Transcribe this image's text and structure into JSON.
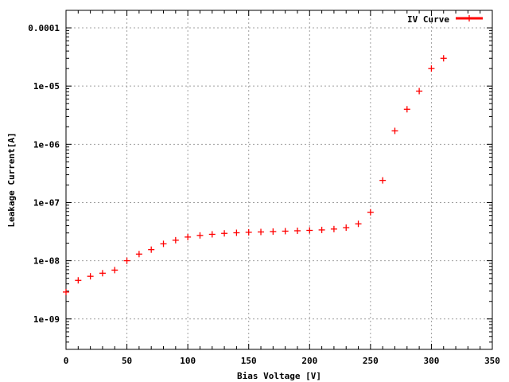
{
  "chart_data": {
    "type": "scatter",
    "xlabel": "Bias Voltage [V]",
    "ylabel": "Leakage Current[A]",
    "xlim": [
      0,
      350
    ],
    "ylim": [
      3e-10,
      0.0002
    ],
    "yscale": "log",
    "grid": true,
    "legend_position": "top-right",
    "x_ticks": [
      0,
      50,
      100,
      150,
      200,
      250,
      300,
      350
    ],
    "x_tick_labels": [
      "0",
      "50",
      "100",
      "150",
      "200",
      "250",
      "300",
      "350"
    ],
    "y_ticks": [
      1e-09,
      1e-08,
      1e-07,
      1e-06,
      1e-05,
      0.0001
    ],
    "y_tick_labels": [
      "1e-09",
      "1e-08",
      "1e-07",
      "1e-06",
      "1e-05",
      "0.0001"
    ],
    "series": [
      {
        "name": "IV Curve",
        "color": "#ff0000",
        "marker": "plus",
        "x": [
          0,
          10,
          20,
          30,
          40,
          50,
          60,
          70,
          80,
          90,
          100,
          110,
          120,
          130,
          140,
          150,
          160,
          170,
          180,
          190,
          200,
          210,
          220,
          230,
          240,
          250,
          260,
          270,
          280,
          290,
          300,
          310
        ],
        "y": [
          2.9e-09,
          4.6e-09,
          5.4e-09,
          6.1e-09,
          6.9e-09,
          1e-08,
          1.3e-08,
          1.55e-08,
          1.95e-08,
          2.25e-08,
          2.55e-08,
          2.72e-08,
          2.84e-08,
          2.95e-08,
          3.02e-08,
          3.08e-08,
          3.12e-08,
          3.17e-08,
          3.22e-08,
          3.27e-08,
          3.32e-08,
          3.38e-08,
          3.5e-08,
          3.7e-08,
          4.3e-08,
          6.8e-08,
          2.4e-07,
          1.7e-06,
          4e-06,
          8.2e-06,
          2e-05,
          3e-05
        ]
      }
    ]
  }
}
